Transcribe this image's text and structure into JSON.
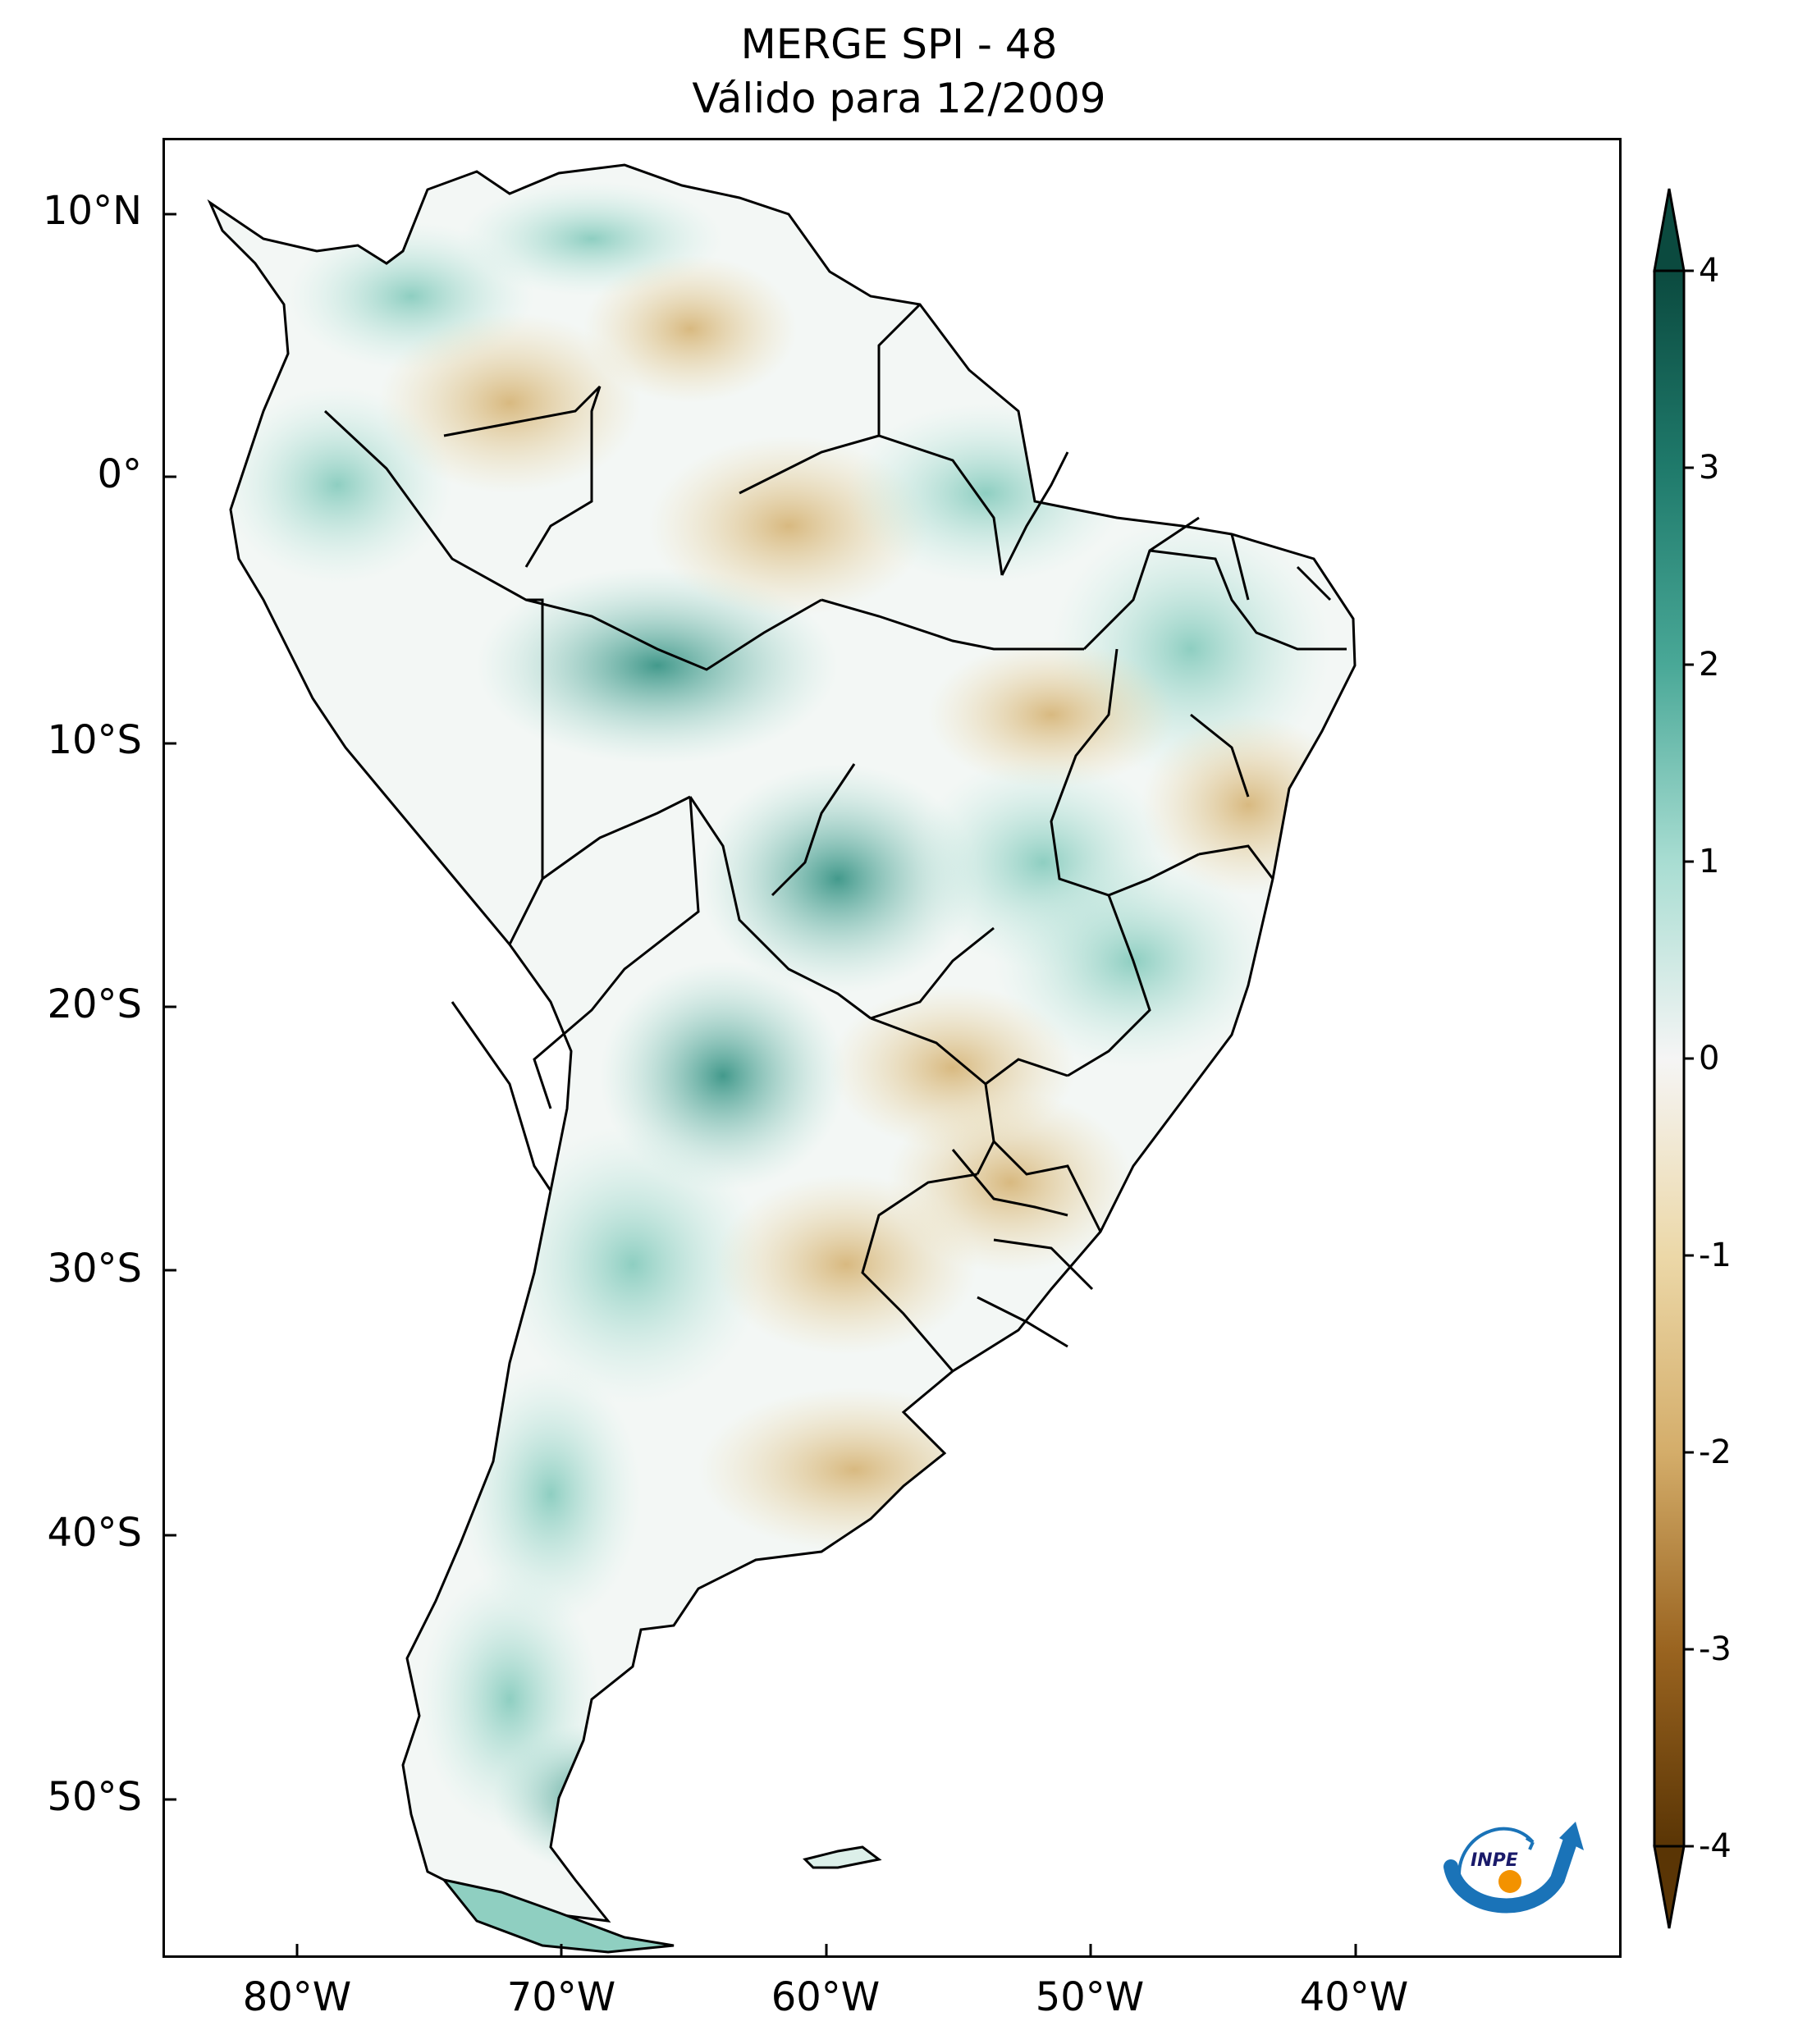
{
  "title": {
    "line1": "MERGE   SPI - 48",
    "line2": "Válido para 12/2009"
  },
  "map": {
    "lat_labels": [
      "10°N",
      "0°",
      "10°S",
      "20°S",
      "30°S",
      "40°S",
      "50°S"
    ],
    "lat_values": [
      10,
      0,
      -10,
      -20,
      -30,
      -40,
      -50
    ],
    "lon_labels": [
      "80°W",
      "70°W",
      "60°W",
      "50°W",
      "40°W"
    ],
    "lon_values": [
      -80,
      -70,
      -60,
      -50,
      -40
    ],
    "extent": {
      "lon_min": -85,
      "lon_max": -30,
      "lat_min": -56,
      "lat_max": 12.5
    }
  },
  "colorbar": {
    "labels": [
      "4",
      "3",
      "2",
      "1",
      "0",
      "-1",
      "-2",
      "-3",
      "-4"
    ],
    "values": [
      4,
      3,
      2,
      1,
      0,
      -1,
      -2,
      -3,
      -4
    ],
    "range": [
      -4,
      4
    ],
    "extend": "both",
    "colormap": "BrBG",
    "colors": {
      "max": "#0b4a3f",
      "mid_high": "#3aa08f",
      "low_high": "#a8ddd2",
      "zero": "#f5f5f5",
      "low_low": "#ecd8a8",
      "mid_low": "#c99a4c",
      "min": "#5a3505"
    }
  },
  "logo": {
    "text": "INPE",
    "colors": {
      "arc": "#1a73b8",
      "dot": "#f39200"
    }
  }
}
